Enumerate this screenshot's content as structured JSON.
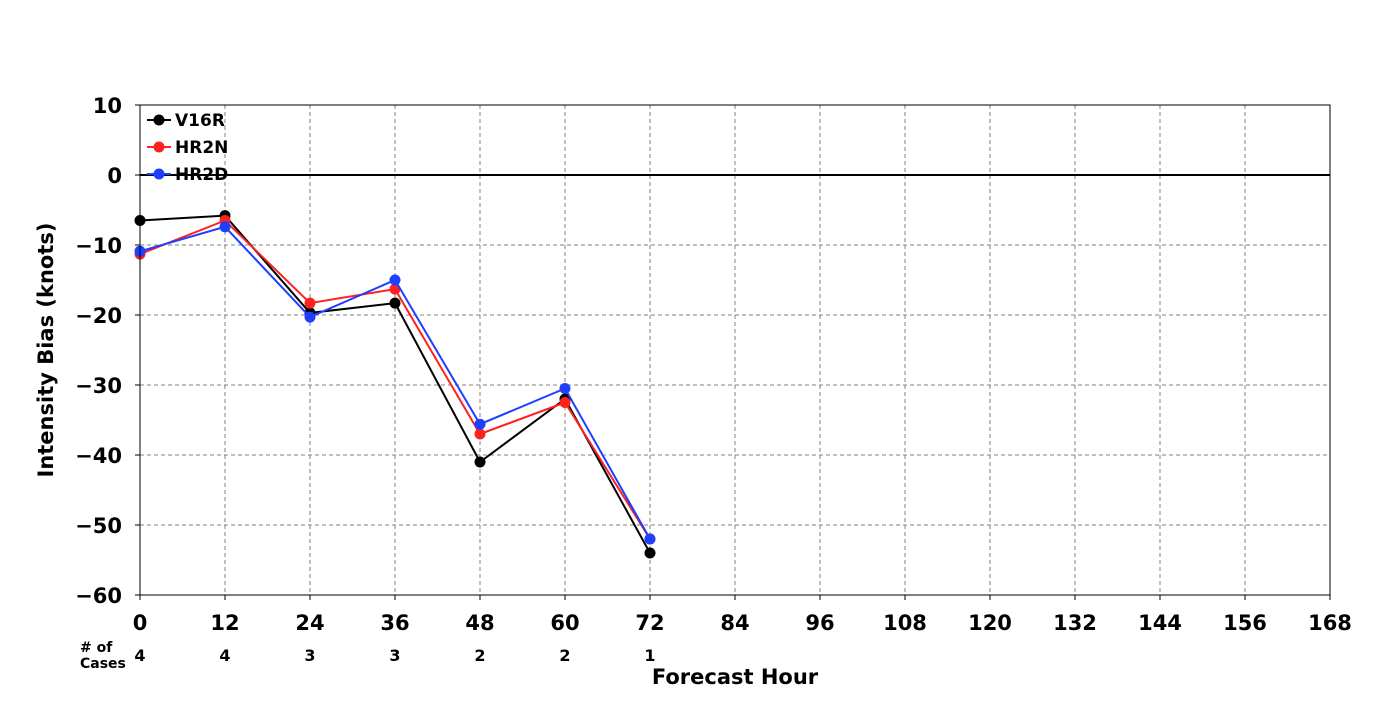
{
  "chart_data": {
    "type": "line",
    "title": "",
    "xlabel": "Forecast Hour",
    "ylabel": "Intensity Bias (knots)",
    "xlim": [
      0,
      168
    ],
    "ylim": [
      -60,
      10
    ],
    "x_ticks": [
      "0",
      "12",
      "24",
      "36",
      "48",
      "60",
      "72",
      "84",
      "96",
      "108",
      "120",
      "132",
      "144",
      "156",
      "168"
    ],
    "y_ticks": [
      "10",
      "0",
      "−10",
      "−20",
      "−30",
      "−40",
      "−50",
      "−60"
    ],
    "x_tick_values": [
      0,
      12,
      24,
      36,
      48,
      60,
      72,
      84,
      96,
      108,
      120,
      132,
      144,
      156,
      168
    ],
    "y_tick_values": [
      10,
      0,
      -10,
      -20,
      -30,
      -40,
      -50,
      -60
    ],
    "grid": true,
    "zero_line": true,
    "legend_position": "top-left",
    "series": [
      {
        "name": "V16R",
        "color": "#000000",
        "x": [
          0,
          12,
          24,
          36,
          48,
          60,
          72
        ],
        "values": [
          -6.5,
          -5.8,
          -19.7,
          -18.3,
          -41.0,
          -32.0,
          -54.0
        ]
      },
      {
        "name": "HR2N",
        "color": "#ff2020",
        "x": [
          0,
          12,
          24,
          36,
          48,
          60,
          72
        ],
        "values": [
          -11.3,
          -6.5,
          -18.3,
          -16.3,
          -37.0,
          -32.5,
          -52.0
        ]
      },
      {
        "name": "HR2D",
        "color": "#1f3fff",
        "x": [
          0,
          12,
          24,
          36,
          48,
          60,
          72
        ],
        "values": [
          -10.9,
          -7.4,
          -20.3,
          -15.0,
          -35.6,
          -30.5,
          -52.0
        ]
      }
    ],
    "cases": {
      "label_line1": "# of",
      "label_line2": "Cases",
      "x": [
        0,
        12,
        24,
        36,
        48,
        60,
        72
      ],
      "values": [
        "4",
        "4",
        "3",
        "3",
        "2",
        "2",
        "1"
      ]
    }
  }
}
